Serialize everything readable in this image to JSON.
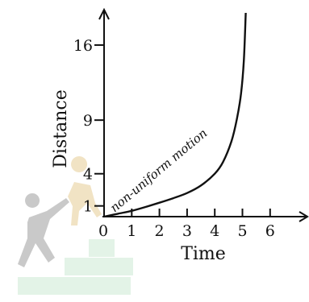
{
  "chart_data": {
    "type": "line",
    "xlabel": "Time",
    "ylabel": "Distance",
    "x_ticks": [
      0,
      1,
      2,
      3,
      4,
      5,
      6
    ],
    "y_ticks": [
      1,
      4,
      9,
      16
    ],
    "origin_label": "0",
    "xlim": [
      0,
      6.6
    ],
    "ylim": [
      0,
      19
    ],
    "grid": false,
    "annotation": "non-uniform motion",
    "series": [
      {
        "x": [
          0,
          0.5,
          1,
          1.5,
          2,
          2.5,
          3,
          3.5,
          4,
          4.3,
          4.6,
          4.8,
          4.95,
          5.05,
          5.12
        ],
        "values": [
          0,
          0.27,
          0.54,
          0.9,
          1.3,
          1.72,
          2.2,
          2.9,
          4.0,
          5.1,
          7.0,
          9.1,
          11.5,
          14.5,
          19
        ]
      }
    ],
    "colors": {
      "axis": "#111111",
      "curve": "#111111",
      "watermark_figure": "#c9c9c9",
      "watermark_figure_accent": "#f1e3c4",
      "watermark_steps": "#e3f3e7"
    }
  }
}
